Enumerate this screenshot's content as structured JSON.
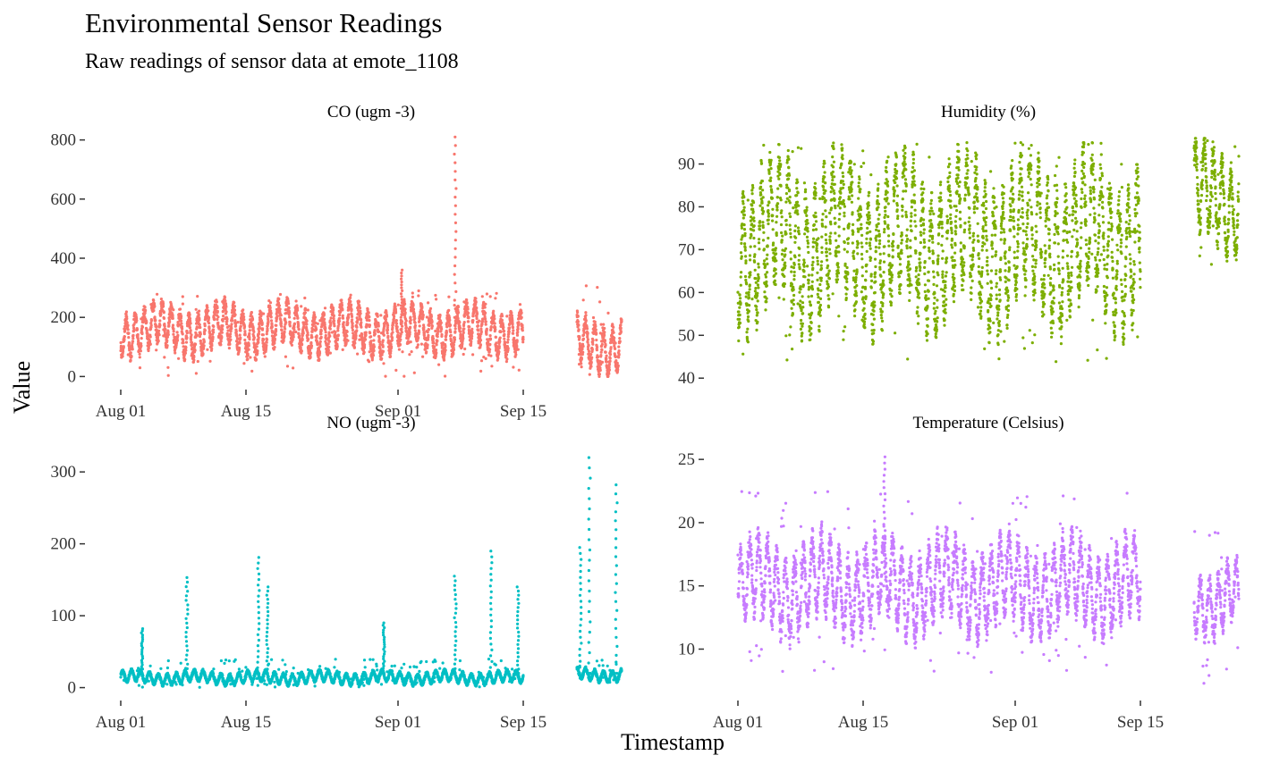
{
  "title": "Environmental Sensor Readings",
  "subtitle": "Raw readings of sensor data at emote_1108",
  "xlabel": "Timestamp",
  "ylabel": "Value",
  "chart_data": [
    {
      "type": "scatter",
      "facet": "CO (ugm -3)",
      "color": "#F8766D",
      "xlim": [
        "2025-07-31",
        "2025-09-27"
      ],
      "ylim": [
        -20,
        820
      ],
      "yticks": [
        0,
        200,
        400,
        600,
        800
      ],
      "xticks": [
        {
          "date": "2025-08-01",
          "label": "Aug 01"
        },
        {
          "date": "2025-08-15",
          "label": "Aug 15"
        },
        {
          "date": "2025-09-01",
          "label": "Sep 01"
        },
        {
          "date": "2025-09-15",
          "label": "Sep 15"
        }
      ],
      "show_x_axis": true,
      "segments": [
        {
          "start": "2025-08-01",
          "end": "2025-09-15",
          "min": 0,
          "max": 290,
          "base": 160,
          "amp": 90
        },
        {
          "start": "2025-09-21",
          "end": "2025-09-26",
          "min": 0,
          "max": 315,
          "base": 110,
          "amp": 100
        }
      ],
      "spikes": [
        {
          "date": "2025-09-07",
          "min": 200,
          "max": 810
        },
        {
          "date": "2025-09-01",
          "min": 150,
          "max": 360
        }
      ]
    },
    {
      "type": "scatter",
      "facet": "Humidity (%)",
      "color": "#7CAE00",
      "xlim": [
        "2025-07-31",
        "2025-09-27"
      ],
      "ylim": [
        39,
        97
      ],
      "yticks": [
        40,
        50,
        60,
        70,
        80,
        90
      ],
      "xticks": [
        {
          "date": "2025-08-01",
          "label": "Aug 01"
        },
        {
          "date": "2025-08-15",
          "label": "Aug 15"
        },
        {
          "date": "2025-09-01",
          "label": "Sep 01"
        },
        {
          "date": "2025-09-15",
          "label": "Sep 15"
        }
      ],
      "show_x_axis": false,
      "segments": [
        {
          "start": "2025-08-01",
          "end": "2025-09-15",
          "min": 43,
          "max": 95,
          "base": 72,
          "amp": 20
        },
        {
          "start": "2025-09-21",
          "end": "2025-09-26",
          "min": 62,
          "max": 96,
          "base": 82,
          "amp": 13
        }
      ],
      "spikes": []
    },
    {
      "type": "scatter",
      "facet": "NO (ugm -3)",
      "color": "#00BFC4",
      "xlim": [
        "2025-07-31",
        "2025-09-27"
      ],
      "ylim": [
        -8,
        335
      ],
      "yticks": [
        0,
        100,
        200,
        300
      ],
      "xticks": [
        {
          "date": "2025-08-01",
          "label": "Aug 01"
        },
        {
          "date": "2025-08-15",
          "label": "Aug 15"
        },
        {
          "date": "2025-09-01",
          "label": "Sep 01"
        },
        {
          "date": "2025-09-15",
          "label": "Sep 15"
        }
      ],
      "show_x_axis": true,
      "segments": [
        {
          "start": "2025-08-01",
          "end": "2025-09-15",
          "min": 0,
          "max": 40,
          "base": 14,
          "amp": 10
        },
        {
          "start": "2025-09-21",
          "end": "2025-09-26",
          "min": 5,
          "max": 40,
          "base": 18,
          "amp": 10
        }
      ],
      "spikes": [
        {
          "date": "2025-08-03",
          "min": 20,
          "max": 82
        },
        {
          "date": "2025-08-08",
          "min": 20,
          "max": 153
        },
        {
          "date": "2025-08-16",
          "min": 20,
          "max": 181
        },
        {
          "date": "2025-08-17",
          "min": 20,
          "max": 140
        },
        {
          "date": "2025-08-30",
          "min": 20,
          "max": 90
        },
        {
          "date": "2025-09-07",
          "min": 20,
          "max": 155
        },
        {
          "date": "2025-09-11",
          "min": 20,
          "max": 190
        },
        {
          "date": "2025-09-14",
          "min": 20,
          "max": 140
        },
        {
          "date": "2025-09-21",
          "min": 20,
          "max": 195
        },
        {
          "date": "2025-09-22",
          "min": 20,
          "max": 320
        },
        {
          "date": "2025-09-25",
          "min": 20,
          "max": 282
        }
      ]
    },
    {
      "type": "scatter",
      "facet": "Temperature (Celsius)",
      "color": "#C77CFF",
      "xlim": [
        "2025-07-31",
        "2025-09-27"
      ],
      "ylim": [
        6.5,
        26
      ],
      "yticks": [
        10,
        15,
        20,
        25
      ],
      "xticks": [
        {
          "date": "2025-08-01",
          "label": "Aug 01"
        },
        {
          "date": "2025-08-15",
          "label": "Aug 15"
        },
        {
          "date": "2025-09-01",
          "label": "Sep 01"
        },
        {
          "date": "2025-09-15",
          "label": "Sep 15"
        }
      ],
      "show_x_axis": true,
      "segments": [
        {
          "start": "2025-08-01",
          "end": "2025-09-15",
          "min": 8,
          "max": 22.5,
          "base": 15,
          "amp": 4
        },
        {
          "start": "2025-09-21",
          "end": "2025-09-26",
          "min": 7,
          "max": 19.5,
          "base": 14,
          "amp": 3
        }
      ],
      "spikes": [
        {
          "date": "2025-08-17",
          "min": 15,
          "max": 25.2
        }
      ]
    }
  ]
}
